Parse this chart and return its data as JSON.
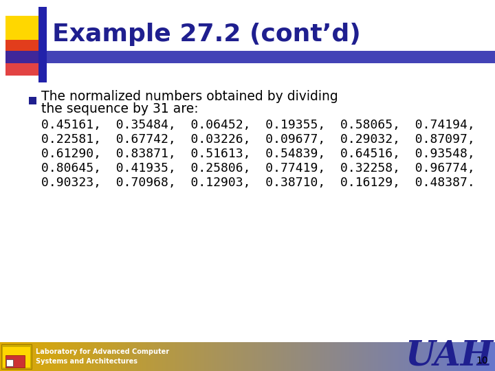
{
  "title": "Example 27.2 (cont’d)",
  "title_color": "#1F1F8F",
  "title_fontsize": 26,
  "bullet_text_line1": "The normalized numbers obtained by dividing",
  "bullet_text_line2": "the sequence by 31 are:",
  "data_lines": [
    "0.45161,  0.35484,  0.06452,  0.19355,  0.58065,  0.74194,",
    "0.22581,  0.67742,  0.03226,  0.09677,  0.29032,  0.87097,",
    "0.61290,  0.83871,  0.51613,  0.54839,  0.64516,  0.93548,",
    "0.80645,  0.41935,  0.25806,  0.77419,  0.32258,  0.96774,",
    "0.90323,  0.70968,  0.12903,  0.38710,  0.16129,  0.48387."
  ],
  "text_color": "#000000",
  "text_fontsize": 13.5,
  "mono_fontsize": 13.0,
  "bullet_color": "#1F1F8F",
  "bg_color": "#FFFFFF",
  "footer_text": "Laboratory for Advanced Computer\nSystems and Architectures",
  "footer_text_color": "#FFFFFF",
  "uah_color": "#1F1F8F",
  "page_number": "10",
  "yellow_sq": "#FFD700",
  "red_sq": "#DD2222",
  "blue_bar": "#2222AA",
  "blue_hbar": "#2222AA",
  "footer_left_color": "#DDAA00",
  "footer_right_color": "#6677CC"
}
